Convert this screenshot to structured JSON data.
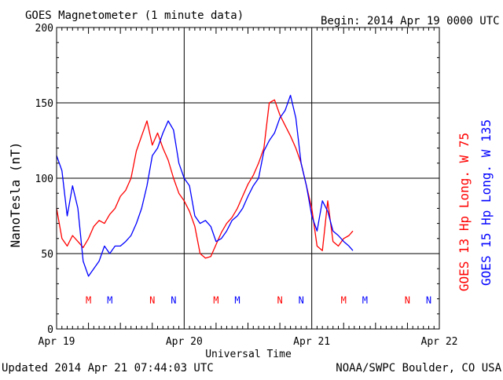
{
  "header": {
    "title": "GOES Magnetometer (1 minute data)",
    "begin": "Begin:  2014 Apr 19 0000 UTC"
  },
  "footer": {
    "updated": "Updated 2014 Apr 21 07:44:03 UTC",
    "credit": "NOAA/SWPC Boulder, CO USA"
  },
  "colors": {
    "goes13": "#ff0000",
    "goes15": "#0000ff",
    "axes": "#000000"
  },
  "chart_data": {
    "type": "line",
    "title": "GOES Magnetometer (1 minute data)",
    "xlabel": "Universal Time",
    "ylabel": "NanoTesla (nT)",
    "xlim": [
      "2014-04-19T00:00",
      "2014-04-22T00:00"
    ],
    "ylim": [
      0,
      200
    ],
    "x_tick_labels": [
      "Apr 19",
      "Apr 20",
      "Apr 21",
      "Apr 22"
    ],
    "y_ticks": [
      0,
      50,
      100,
      150,
      200
    ],
    "grid": true,
    "series": [
      {
        "name": "GOES 13 Hp  Long. W 75",
        "color": "#ff0000",
        "x": [
          "2014-04-19T00:00",
          "2014-04-19T01:00",
          "2014-04-19T02:00",
          "2014-04-19T03:00",
          "2014-04-19T04:00",
          "2014-04-19T05:00",
          "2014-04-19T06:00",
          "2014-04-19T07:00",
          "2014-04-19T08:00",
          "2014-04-19T09:00",
          "2014-04-19T10:00",
          "2014-04-19T11:00",
          "2014-04-19T12:00",
          "2014-04-19T13:00",
          "2014-04-19T14:00",
          "2014-04-19T15:00",
          "2014-04-19T16:00",
          "2014-04-19T17:00",
          "2014-04-19T18:00",
          "2014-04-19T19:00",
          "2014-04-19T20:00",
          "2014-04-19T21:00",
          "2014-04-19T22:00",
          "2014-04-19T23:00",
          "2014-04-20T00:00",
          "2014-04-20T01:00",
          "2014-04-20T02:00",
          "2014-04-20T03:00",
          "2014-04-20T04:00",
          "2014-04-20T05:00",
          "2014-04-20T06:00",
          "2014-04-20T07:00",
          "2014-04-20T08:00",
          "2014-04-20T09:00",
          "2014-04-20T10:00",
          "2014-04-20T11:00",
          "2014-04-20T12:00",
          "2014-04-20T13:00",
          "2014-04-20T14:00",
          "2014-04-20T15:00",
          "2014-04-20T16:00",
          "2014-04-20T17:00",
          "2014-04-20T18:00",
          "2014-04-20T19:00",
          "2014-04-20T20:00",
          "2014-04-20T21:00",
          "2014-04-20T22:00",
          "2014-04-20T23:00",
          "2014-04-21T00:00",
          "2014-04-21T01:00",
          "2014-04-21T02:00",
          "2014-04-21T03:00",
          "2014-04-21T04:00",
          "2014-04-21T05:00",
          "2014-04-21T06:00",
          "2014-04-21T07:00",
          "2014-04-21T07:44"
        ],
        "y": [
          80,
          60,
          55,
          62,
          58,
          54,
          60,
          68,
          72,
          70,
          76,
          80,
          88,
          92,
          100,
          118,
          128,
          138,
          122,
          130,
          120,
          112,
          100,
          90,
          85,
          78,
          68,
          50,
          47,
          48,
          56,
          64,
          70,
          74,
          80,
          88,
          96,
          102,
          110,
          120,
          150,
          152,
          142,
          135,
          128,
          120,
          110,
          95,
          80,
          55,
          52,
          85,
          58,
          55,
          60,
          62,
          65
        ]
      },
      {
        "name": "GOES 15 Hp  Long. W 135",
        "color": "#0000ff",
        "x": [
          "2014-04-19T00:00",
          "2014-04-19T01:00",
          "2014-04-19T02:00",
          "2014-04-19T03:00",
          "2014-04-19T04:00",
          "2014-04-19T05:00",
          "2014-04-19T06:00",
          "2014-04-19T07:00",
          "2014-04-19T08:00",
          "2014-04-19T09:00",
          "2014-04-19T10:00",
          "2014-04-19T11:00",
          "2014-04-19T12:00",
          "2014-04-19T13:00",
          "2014-04-19T14:00",
          "2014-04-19T15:00",
          "2014-04-19T16:00",
          "2014-04-19T17:00",
          "2014-04-19T18:00",
          "2014-04-19T19:00",
          "2014-04-19T20:00",
          "2014-04-19T21:00",
          "2014-04-19T22:00",
          "2014-04-19T23:00",
          "2014-04-20T00:00",
          "2014-04-20T01:00",
          "2014-04-20T02:00",
          "2014-04-20T03:00",
          "2014-04-20T04:00",
          "2014-04-20T05:00",
          "2014-04-20T06:00",
          "2014-04-20T07:00",
          "2014-04-20T08:00",
          "2014-04-20T09:00",
          "2014-04-20T10:00",
          "2014-04-20T11:00",
          "2014-04-20T12:00",
          "2014-04-20T13:00",
          "2014-04-20T14:00",
          "2014-04-20T15:00",
          "2014-04-20T16:00",
          "2014-04-20T17:00",
          "2014-04-20T18:00",
          "2014-04-20T19:00",
          "2014-04-20T20:00",
          "2014-04-20T21:00",
          "2014-04-20T22:00",
          "2014-04-20T23:00",
          "2014-04-21T00:00",
          "2014-04-21T01:00",
          "2014-04-21T02:00",
          "2014-04-21T03:00",
          "2014-04-21T04:00",
          "2014-04-21T05:00",
          "2014-04-21T06:00",
          "2014-04-21T07:00",
          "2014-04-21T07:44"
        ],
        "y": [
          115,
          105,
          75,
          95,
          80,
          45,
          35,
          40,
          45,
          55,
          50,
          55,
          55,
          58,
          62,
          70,
          80,
          95,
          115,
          120,
          130,
          138,
          132,
          110,
          100,
          95,
          75,
          70,
          72,
          68,
          58,
          60,
          65,
          72,
          75,
          80,
          88,
          95,
          100,
          118,
          125,
          130,
          140,
          145,
          155,
          140,
          110,
          95,
          75,
          65,
          85,
          78,
          65,
          62,
          58,
          55,
          52
        ]
      }
    ],
    "markers": {
      "goes13": [
        "M",
        "N",
        "M",
        "N",
        "M",
        "N"
      ],
      "goes15": [
        "M",
        "N",
        "M",
        "N",
        "M",
        "N"
      ],
      "goes13_x_days": [
        0.25,
        0.75,
        1.25,
        1.75,
        2.25,
        2.75
      ],
      "goes15_x_days": [
        0.417,
        0.917,
        1.417,
        1.917,
        2.417,
        2.917
      ]
    }
  }
}
